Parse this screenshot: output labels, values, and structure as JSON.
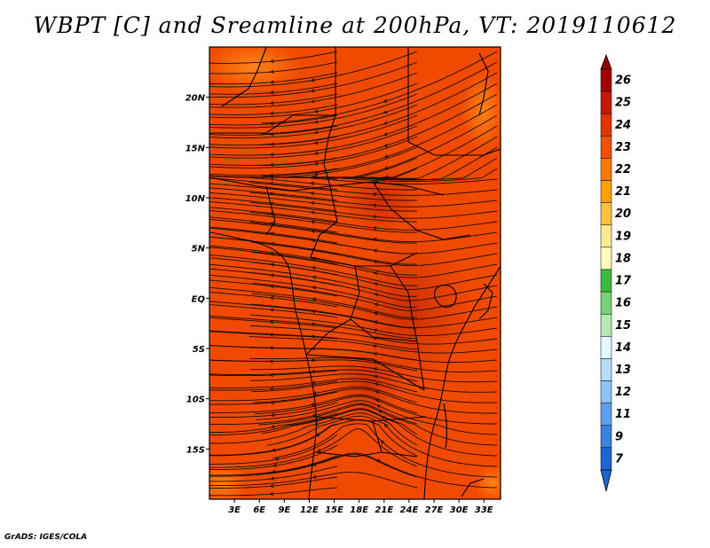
{
  "title": "WBPT [C] and Sreamline at 200hPa, VT: 2019110612",
  "credit": "GrADS: IGES/COLA",
  "map": {
    "lat_labels": [
      "20N",
      "15N",
      "10N",
      "5N",
      "EQ",
      "5S",
      "10S",
      "15S"
    ],
    "lat_values": [
      20,
      15,
      10,
      5,
      0,
      -5,
      -10,
      -15
    ],
    "lon_labels": [
      "3E",
      "6E",
      "9E",
      "12E",
      "15E",
      "18E",
      "21E",
      "24E",
      "27E",
      "30E",
      "33E"
    ],
    "lon_values": [
      3,
      6,
      9,
      12,
      15,
      18,
      21,
      24,
      27,
      30,
      33
    ],
    "lat_range": [
      -20,
      25
    ],
    "lon_range": [
      0,
      35
    ],
    "field_color": "#f04a00",
    "warm_color": "#d12e00",
    "cool_color": "#ff7a1a",
    "line_color": "#1a0c04"
  },
  "colorbar": {
    "levels": [
      "26",
      "25",
      "24",
      "23",
      "22",
      "21",
      "20",
      "19",
      "18",
      "17",
      "16",
      "15",
      "14",
      "13",
      "12",
      "11",
      "9",
      "7"
    ],
    "colors": [
      "#a50000",
      "#c81800",
      "#e23400",
      "#f05000",
      "#fa7a00",
      "#fca000",
      "#fdc040",
      "#feea90",
      "#fffcc0",
      "#3dba3d",
      "#78d278",
      "#b4e8b4",
      "#e6f8ff",
      "#b4dcfa",
      "#8cc4f4",
      "#5aa0ec",
      "#3a82e0",
      "#1e64d2"
    ],
    "top_arrow_color": "#8a0000",
    "bottom_arrow_color": "#1e64d2"
  }
}
